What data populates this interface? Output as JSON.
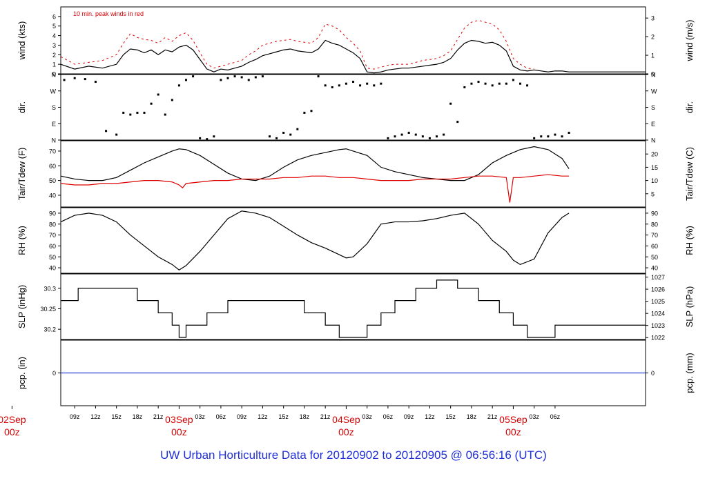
{
  "footer": "UW Urban Horticulture Data for 20120902  to  20120905 @ 06:56:16  (UTC)",
  "chart_data": {
    "type": "line",
    "time_axis": {
      "start_hour": -5,
      "end_hour": 79,
      "ticks": [
        {
          "hour": -3,
          "label": "09z"
        },
        {
          "hour": 0,
          "label": "12z"
        },
        {
          "hour": 3,
          "label": "15z"
        },
        {
          "hour": 6,
          "label": "18z"
        },
        {
          "hour": 9,
          "label": "21z"
        },
        {
          "hour": 15,
          "label": "03z"
        },
        {
          "hour": 18,
          "label": "06z"
        },
        {
          "hour": 21,
          "label": "09z"
        },
        {
          "hour": 24,
          "label": "12z"
        },
        {
          "hour": 27,
          "label": "15z"
        },
        {
          "hour": 30,
          "label": "18z"
        },
        {
          "hour": 33,
          "label": "21z"
        },
        {
          "hour": 39,
          "label": "03z"
        },
        {
          "hour": 42,
          "label": "06z"
        },
        {
          "hour": 45,
          "label": "09z"
        },
        {
          "hour": 48,
          "label": "12z"
        },
        {
          "hour": 51,
          "label": "15z"
        },
        {
          "hour": 54,
          "label": "18z"
        },
        {
          "hour": 57,
          "label": "21z"
        },
        {
          "hour": 63,
          "label": "03z"
        },
        {
          "hour": 66,
          "label": "06z"
        }
      ],
      "day_labels": [
        {
          "hour": -12,
          "line1": "02Sep",
          "line2": "00z"
        },
        {
          "hour": 12,
          "line1": "03Sep",
          "line2": "00z"
        },
        {
          "hour": 36,
          "line1": "04Sep",
          "line2": "00z"
        },
        {
          "hour": 60,
          "line1": "05Sep",
          "line2": "00z"
        }
      ]
    },
    "panels": [
      {
        "id": "wind",
        "left_label": "wind (kts)",
        "right_label": "wind (m/s)",
        "annotation": "10 min. peak winds in red",
        "ylim": [
          0,
          7
        ],
        "left_ticks": [
          0,
          1,
          2,
          3,
          4,
          5,
          6
        ],
        "right_ticks": [
          0,
          1,
          2,
          3
        ],
        "right_scale": 0.5144,
        "series": [
          {
            "key": "speed",
            "color": "#000000",
            "x": [
              -5,
              -3,
              -1,
              1,
              3,
              4,
              5,
              6,
              7,
              8,
              9,
              10,
              11,
              12,
              13,
              14,
              15,
              16,
              17,
              18,
              19,
              20,
              21,
              22,
              23,
              24,
              25,
              26,
              27,
              28,
              29,
              30,
              31,
              32,
              33,
              34,
              35,
              36,
              37,
              38,
              39,
              40,
              41,
              42,
              43,
              44,
              45,
              46,
              47,
              48,
              49,
              50,
              51,
              52,
              53,
              54,
              55,
              56,
              57,
              58,
              59,
              60,
              61,
              62,
              63,
              64,
              65,
              66,
              67,
              68,
              69,
              70,
              71,
              72,
              73,
              74,
              75,
              76,
              77,
              78,
              79
            ],
            "y": [
              1,
              0.5,
              0.8,
              0.6,
              1.0,
              2.0,
              2.6,
              2.5,
              2.2,
              2.5,
              2.0,
              2.5,
              2.3,
              2.8,
              3.0,
              2.5,
              1.5,
              0.5,
              0.2,
              0.5,
              0.4,
              0.6,
              0.8,
              1.2,
              1.5,
              1.9,
              2.1,
              2.3,
              2.5,
              2.6,
              2.4,
              2.3,
              2.2,
              2.6,
              3.5,
              3.2,
              3.0,
              2.6,
              2.2,
              1.6,
              0.2,
              0.1,
              0.2,
              0.4,
              0.5,
              0.6,
              0.6,
              0.7,
              0.8,
              0.9,
              1.0,
              1.2,
              1.6,
              2.5,
              3.2,
              3.5,
              3.4,
              3.2,
              3.3,
              3.0,
              2.4,
              0.8,
              0.4,
              0.3,
              0.4,
              0.3,
              0.2,
              0.3,
              0.3,
              0.2,
              0.2,
              0.2,
              0.2,
              0.2,
              0.2,
              0.2,
              0.2,
              0.2,
              0.2,
              0.2,
              0.2
            ]
          },
          {
            "key": "peak",
            "color": "#dd0000",
            "x": [
              -5,
              -3,
              -1,
              1,
              3,
              4,
              5,
              6,
              7,
              8,
              9,
              10,
              11,
              12,
              13,
              14,
              15,
              16,
              17,
              18,
              19,
              20,
              21,
              22,
              23,
              24,
              25,
              26,
              27,
              28,
              29,
              30,
              31,
              32,
              33,
              34,
              35,
              36,
              37,
              38,
              39,
              40,
              41,
              42,
              43,
              44,
              45,
              46,
              47,
              48,
              49,
              50,
              51,
              52,
              53,
              54,
              55,
              56,
              57,
              58,
              59,
              60,
              61,
              62,
              63
            ],
            "y": [
              1.8,
              1.0,
              1.2,
              1.4,
              2.0,
              3.2,
              4.2,
              3.8,
              3.6,
              3.5,
              3.2,
              3.8,
              3.4,
              4.0,
              4.3,
              3.5,
              2.2,
              1.0,
              0.6,
              0.8,
              1.0,
              1.2,
              1.4,
              2.0,
              2.4,
              3.0,
              3.2,
              3.4,
              3.5,
              3.6,
              3.4,
              3.3,
              3.2,
              3.8,
              5.2,
              5.0,
              4.6,
              3.8,
              3.2,
              2.4,
              0.6,
              0.5,
              0.7,
              0.9,
              1.0,
              1.0,
              1.0,
              1.2,
              1.4,
              1.5,
              1.6,
              1.9,
              2.4,
              3.6,
              4.8,
              5.4,
              5.6,
              5.4,
              5.2,
              4.6,
              3.4,
              1.6,
              1.0,
              0.6,
              0.5
            ]
          }
        ]
      },
      {
        "id": "dir",
        "left_label": "dir.",
        "right_label": "dir.",
        "ylim": [
          0,
          360
        ],
        "left_tick_labels": [
          {
            "v": 0,
            "t": "N"
          },
          {
            "v": 90,
            "t": "E"
          },
          {
            "v": 180,
            "t": "S"
          },
          {
            "v": 270,
            "t": "W"
          },
          {
            "v": 360,
            "t": "N"
          }
        ],
        "right_tick_labels": [
          {
            "v": 0,
            "t": "N"
          },
          {
            "v": 90,
            "t": "E"
          },
          {
            "v": 180,
            "t": "S"
          },
          {
            "v": 270,
            "t": "W"
          },
          {
            "v": 360,
            "t": "N"
          }
        ],
        "series": [
          {
            "key": "direction",
            "color": "#000000",
            "x": [
              -4.5,
              -3,
              -1.5,
              0,
              1.5,
              3,
              4,
              5,
              6,
              7,
              8,
              9,
              10,
              11,
              12,
              13,
              14,
              15,
              16,
              17,
              18,
              19,
              20,
              21,
              22,
              23,
              24,
              25,
              26,
              27,
              28,
              29,
              30,
              31,
              32,
              33,
              34,
              35,
              36,
              37,
              38,
              39,
              40,
              41,
              42,
              43,
              44,
              45,
              46,
              47,
              48,
              49,
              50,
              51,
              52,
              53,
              54,
              55,
              56,
              57,
              58,
              59,
              60,
              61,
              62,
              63,
              64,
              65,
              66,
              67,
              68
            ],
            "y": [
              330,
              340,
              335,
              320,
              50,
              30,
              150,
              140,
              150,
              150,
              200,
              250,
              140,
              220,
              300,
              330,
              350,
              10,
              5,
              20,
              330,
              340,
              350,
              345,
              330,
              345,
              350,
              20,
              10,
              40,
              30,
              60,
              150,
              160,
              350,
              300,
              290,
              300,
              310,
              320,
              300,
              310,
              300,
              310,
              10,
              20,
              30,
              40,
              30,
              20,
              10,
              20,
              30,
              200,
              100,
              290,
              310,
              320,
              310,
              300,
              310,
              310,
              330,
              310,
              300,
              10,
              20,
              20,
              30,
              20,
              40
            ]
          }
        ]
      },
      {
        "id": "temp",
        "left_label": "Tair/Tdew (F)",
        "right_label": "Tair/Tdew (C)",
        "ylim": [
          32,
          77
        ],
        "left_ticks": [
          40,
          50,
          60,
          70
        ],
        "right_ticks": [
          5,
          10,
          15,
          20
        ],
        "series": [
          {
            "key": "Tair",
            "color": "#000000",
            "x": [
              -5,
              -3,
              -1,
              1,
              3,
              5,
              7,
              9,
              11,
              12,
              13,
              15,
              17,
              19,
              21,
              23,
              25,
              27,
              29,
              31,
              33,
              35,
              36,
              37,
              39,
              41,
              43,
              45,
              47,
              49,
              51,
              53,
              55,
              57,
              59,
              60,
              61,
              63,
              65,
              67,
              68
            ],
            "y": [
              53,
              51,
              50,
              50,
              52,
              57,
              62,
              66,
              70,
              71.5,
              71,
              67,
              61,
              55,
              51,
              50,
              53,
              59,
              64,
              67,
              69,
              71,
              71.5,
              70,
              67,
              59,
              56,
              54,
              52,
              51,
              50,
              50,
              54,
              62,
              67,
              69,
              71,
              73,
              71,
              65,
              58
            ]
          },
          {
            "key": "Tdew",
            "color": "#dd0000",
            "x": [
              -5,
              -3,
              -1,
              1,
              3,
              5,
              7,
              9,
              11,
              12,
              12.5,
              13,
              15,
              17,
              19,
              21,
              23,
              25,
              27,
              29,
              31,
              33,
              35,
              37,
              39,
              41,
              43,
              45,
              47,
              49,
              51,
              53,
              55,
              57,
              59,
              59.5,
              60,
              61,
              63,
              65,
              67,
              68
            ],
            "y": [
              48,
              47,
              47,
              48,
              48,
              49,
              50,
              50,
              49,
              47,
              45,
              48,
              49,
              50,
              50,
              51,
              51,
              51,
              52,
              52,
              53,
              53,
              52,
              52,
              51,
              50,
              50,
              50,
              51,
              51,
              51,
              52,
              53,
              53,
              52,
              35,
              52,
              52,
              53,
              54,
              53,
              53
            ]
          }
        ]
      },
      {
        "id": "rh",
        "left_label": "RH (%)",
        "right_label": "RH (%)",
        "ylim": [
          35,
          95
        ],
        "left_ticks": [
          40,
          50,
          60,
          70,
          80,
          90
        ],
        "right_ticks": [
          40,
          50,
          60,
          70,
          80,
          90
        ],
        "series": [
          {
            "key": "RH",
            "color": "#000000",
            "x": [
              -5,
              -3,
              -1,
              1,
              3,
              5,
              7,
              9,
              11,
              12,
              13,
              15,
              17,
              19,
              21,
              23,
              25,
              27,
              29,
              31,
              33,
              35,
              36,
              37,
              39,
              41,
              43,
              45,
              47,
              49,
              51,
              53,
              55,
              57,
              59,
              60,
              61,
              63,
              65,
              67,
              68
            ],
            "y": [
              82,
              88,
              90,
              88,
              82,
              70,
              60,
              50,
              43,
              38,
              42,
              55,
              70,
              85,
              92,
              90,
              86,
              78,
              70,
              63,
              58,
              52,
              49,
              50,
              62,
              80,
              82,
              82,
              83,
              85,
              88,
              90,
              80,
              65,
              55,
              47,
              43,
              48,
              72,
              86,
              90
            ]
          }
        ]
      },
      {
        "id": "slp",
        "left_label": "SLP (inHg)",
        "right_label": "SLP (hPa)",
        "ylim": [
          30.175,
          30.335
        ],
        "left_ticks": [
          30.2,
          30.25,
          30.3
        ],
        "right_ticks": [
          1022,
          1023,
          1024,
          1025,
          1026,
          1027
        ],
        "series": [
          {
            "key": "SLP",
            "color": "#000000",
            "step": true,
            "x": [
              -5,
              -2.5,
              2,
              6,
              9,
              11,
              12,
              13,
              14,
              16,
              19,
              23,
              30,
              33,
              35,
              36,
              39,
              41,
              43,
              46,
              49,
              52,
              55,
              58,
              60,
              62,
              64,
              66,
              68
            ],
            "y": [
              30.27,
              30.3,
              30.3,
              30.27,
              30.24,
              30.21,
              30.18,
              30.21,
              30.21,
              30.24,
              30.27,
              30.27,
              30.24,
              30.21,
              30.18,
              30.18,
              30.21,
              30.24,
              30.27,
              30.3,
              30.32,
              30.3,
              30.27,
              30.24,
              30.21,
              30.18,
              30.18,
              30.21,
              30.21
            ]
          }
        ]
      },
      {
        "id": "pcp",
        "left_label": "pcp. (in)",
        "right_label": "pcp. (mm)",
        "ylim": [
          -1,
          1
        ],
        "left_ticks": [
          0
        ],
        "right_ticks": [
          0
        ],
        "series": [
          {
            "key": "precip",
            "color": "#2a3fd8",
            "x": [
              -5,
              79
            ],
            "y": [
              0,
              0
            ]
          }
        ]
      }
    ]
  }
}
